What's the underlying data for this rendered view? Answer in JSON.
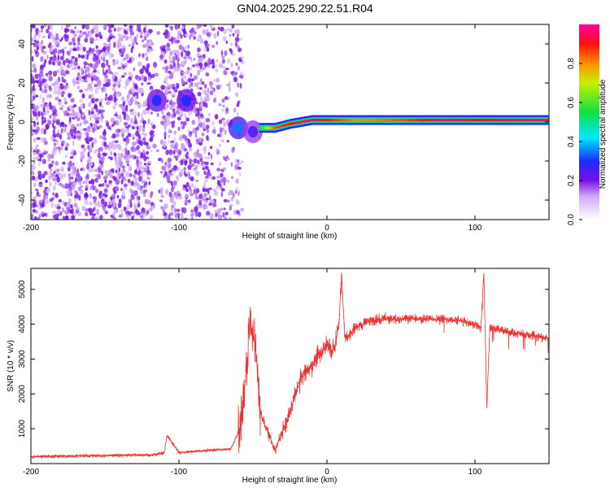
{
  "figure": {
    "title": "GN04.2025.290.22.51.R04"
  },
  "colors": {
    "snr_line": "#f03030",
    "scatter": "#7b1fe8",
    "scatter_light": "#c9a6f2",
    "axis": "#000000",
    "background": "#ffffff"
  },
  "colorbar": {
    "label": "Normalized spectral amplitude",
    "ticks": [
      "0.0",
      "0.2",
      "0.4",
      "0.6",
      "0.8"
    ],
    "range": [
      0,
      1
    ]
  },
  "chart_data": [
    {
      "type": "heatmap",
      "title": "",
      "xlabel": "Height of straight line (km)",
      "ylabel": "Frequency (Hz)",
      "xlim": [
        -200,
        150
      ],
      "ylim": [
        -50,
        50
      ],
      "xticks": [
        "-200",
        "-100",
        "0",
        "100"
      ],
      "yticks": [
        "-40",
        "-20",
        "0",
        "20",
        "40"
      ],
      "noise_region_km": [
        -200,
        -65
      ],
      "clusters": [
        {
          "x": -115,
          "y": 11,
          "amplitude": 0.3
        },
        {
          "x": -95,
          "y": 11,
          "amplitude": 0.3
        },
        {
          "x": -60,
          "y": -3,
          "amplitude": 0.35
        },
        {
          "x": -50,
          "y": -5,
          "amplitude": 0.25
        }
      ],
      "ridge": [
        {
          "x": -45,
          "y": -3,
          "amplitude": 0.55
        },
        {
          "x": -35,
          "y": -3,
          "amplitude": 0.85
        },
        {
          "x": -25,
          "y": -1,
          "amplitude": 0.9
        },
        {
          "x": -10,
          "y": 1,
          "amplitude": 0.95
        },
        {
          "x": 0,
          "y": 1,
          "amplitude": 0.9
        },
        {
          "x": 20,
          "y": 1,
          "amplitude": 0.8
        },
        {
          "x": 50,
          "y": 1,
          "amplitude": 0.85
        },
        {
          "x": 80,
          "y": 1,
          "amplitude": 0.95
        },
        {
          "x": 100,
          "y": 1,
          "amplitude": 0.9
        },
        {
          "x": 150,
          "y": 1,
          "amplitude": 0.95
        }
      ]
    },
    {
      "type": "line",
      "title": "",
      "xlabel": "Height of straight line (km)",
      "ylabel": "SNR (10 * v/v)",
      "xlim": [
        -200,
        150
      ],
      "ylim": [
        0,
        5600
      ],
      "xticks": [
        "-200",
        "-100",
        "0",
        "100"
      ],
      "yticks": [
        "1000",
        "2000",
        "3000",
        "4000",
        "5000"
      ],
      "series": [
        {
          "name": "SNR",
          "x": [
            -200,
            -150,
            -120,
            -110,
            -108,
            -100,
            -80,
            -65,
            -60,
            -56,
            -52,
            -48,
            -45,
            -40,
            -35,
            -30,
            -25,
            -20,
            -15,
            -10,
            -5,
            0,
            5,
            8,
            10,
            12,
            15,
            20,
            30,
            40,
            60,
            80,
            90,
            100,
            104,
            106,
            108,
            110,
            120,
            140,
            150
          ],
          "y": [
            200,
            230,
            250,
            300,
            800,
            320,
            380,
            420,
            900,
            1800,
            4100,
            3200,
            1500,
            900,
            400,
            900,
            1500,
            2200,
            2600,
            2800,
            3200,
            3400,
            3300,
            4000,
            5400,
            3600,
            3700,
            3950,
            4100,
            4150,
            4150,
            4150,
            4100,
            4000,
            3900,
            5500,
            1600,
            3900,
            3800,
            3650,
            3600
          ]
        }
      ]
    }
  ]
}
